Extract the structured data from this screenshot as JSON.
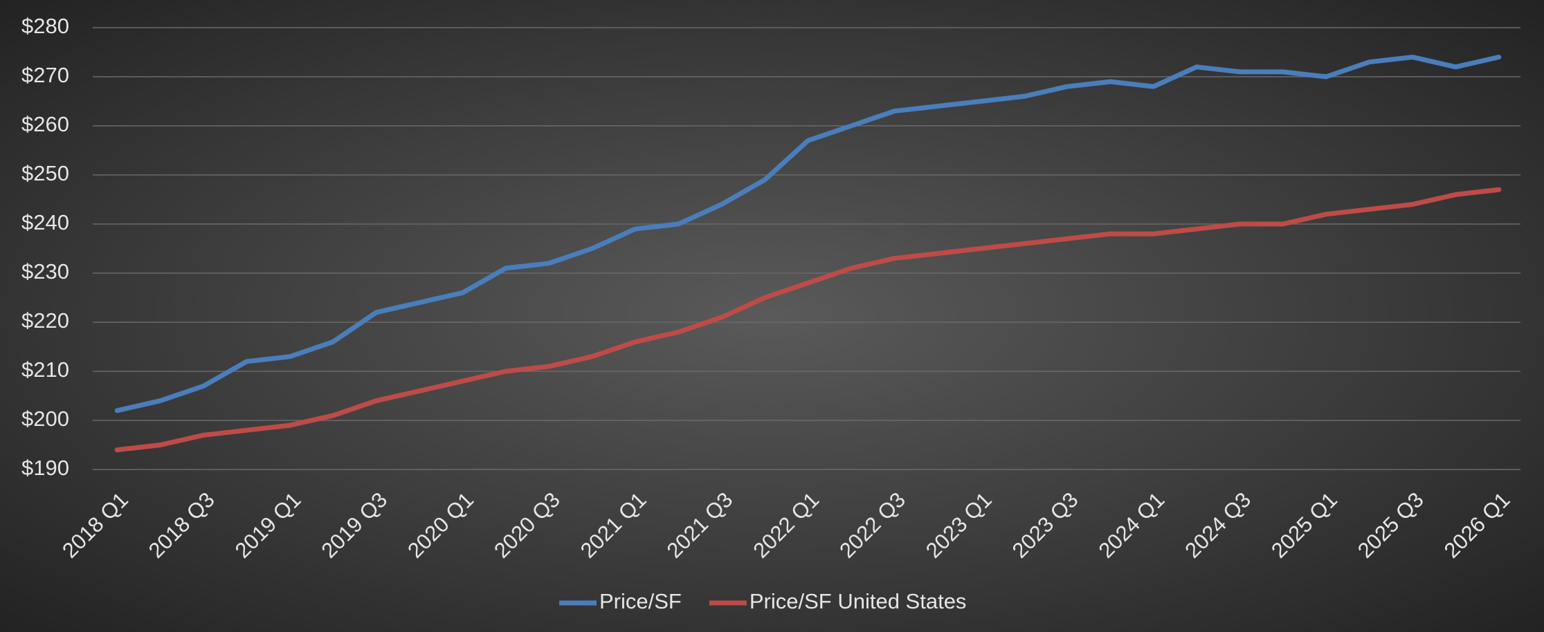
{
  "chart_data": {
    "type": "line",
    "categories": [
      "2018 Q1",
      null,
      "2018 Q3",
      null,
      "2019 Q1",
      null,
      "2019 Q3",
      null,
      "2020 Q1",
      null,
      "2020 Q3",
      null,
      "2021 Q1",
      null,
      "2021 Q3",
      null,
      "2022 Q1",
      null,
      "2022 Q3",
      null,
      "2023 Q1",
      null,
      "2023 Q3",
      null,
      "2024 Q1",
      null,
      "2024 Q3",
      null,
      "2025 Q1",
      null,
      "2025 Q3",
      null,
      "2026 Q1"
    ],
    "series": [
      {
        "name": "Price/SF",
        "color": "#4a7ebb",
        "values": [
          202,
          204,
          207,
          212,
          213,
          216,
          222,
          224,
          226,
          231,
          232,
          235,
          239,
          240,
          244,
          249,
          257,
          260,
          263,
          264,
          265,
          266,
          268,
          269,
          268,
          272,
          271,
          271,
          270,
          273,
          274,
          272,
          274
        ]
      },
      {
        "name": "Price/SF United States",
        "color": "#be4b48",
        "values": [
          194,
          195,
          197,
          198,
          199,
          201,
          204,
          206,
          208,
          210,
          211,
          213,
          216,
          218,
          221,
          225,
          228,
          231,
          233,
          234,
          235,
          236,
          237,
          238,
          238,
          239,
          240,
          240,
          242,
          243,
          244,
          246,
          247
        ]
      }
    ],
    "ylim": [
      190,
      280
    ],
    "yticks": [
      {
        "value": 190,
        "label": "$190"
      },
      {
        "value": 200,
        "label": "$200"
      },
      {
        "value": 210,
        "label": "$210"
      },
      {
        "value": 220,
        "label": "$220"
      },
      {
        "value": 230,
        "label": "$230"
      },
      {
        "value": 240,
        "label": "$240"
      },
      {
        "value": 250,
        "label": "$250"
      },
      {
        "value": 260,
        "label": "$260"
      },
      {
        "value": 270,
        "label": "$270"
      },
      {
        "value": 280,
        "label": "$280"
      }
    ],
    "grid": true,
    "legend": "bottom"
  }
}
